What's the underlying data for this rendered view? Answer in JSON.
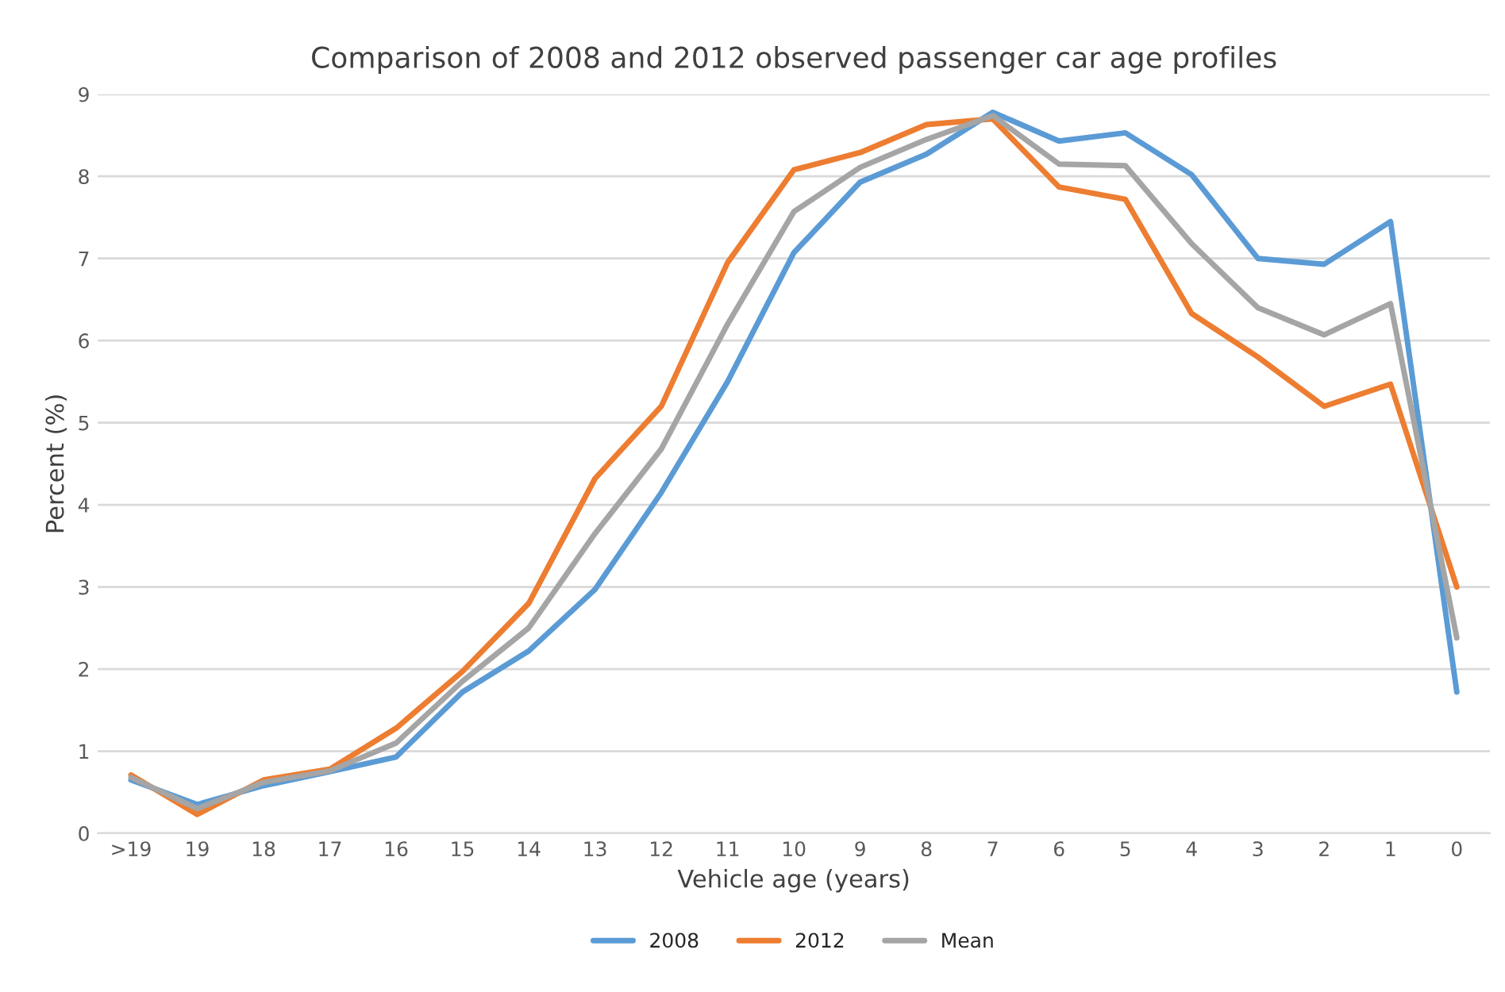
{
  "chart_data": {
    "type": "line",
    "title": "Comparison of 2008 and 2012 observed passenger car age profiles",
    "xlabel": "Vehicle age (years)",
    "ylabel": "Percent (%)",
    "categories": [
      ">19",
      "19",
      "18",
      "17",
      "16",
      "15",
      "14",
      "13",
      "12",
      "11",
      "10",
      "9",
      "8",
      "7",
      "6",
      "5",
      "4",
      "3",
      "2",
      "1",
      "0"
    ],
    "series": [
      {
        "name": "2008",
        "color": "#5b9bd5",
        "values": [
          0.65,
          0.35,
          0.58,
          0.75,
          0.93,
          1.72,
          2.22,
          2.97,
          4.15,
          5.5,
          7.07,
          7.93,
          8.27,
          8.78,
          8.43,
          8.53,
          8.02,
          7.0,
          6.93,
          7.45,
          1.72
        ]
      },
      {
        "name": "2012",
        "color": "#ed7d31",
        "values": [
          0.71,
          0.23,
          0.65,
          0.78,
          1.28,
          1.97,
          2.8,
          4.32,
          5.2,
          6.95,
          8.08,
          8.29,
          8.63,
          8.7,
          7.87,
          7.72,
          6.33,
          5.8,
          5.2,
          5.47,
          3.0
        ]
      },
      {
        "name": "Mean",
        "color": "#a5a5a5",
        "values": [
          0.68,
          0.3,
          0.62,
          0.76,
          1.1,
          1.85,
          2.5,
          3.65,
          4.68,
          6.2,
          7.57,
          8.11,
          8.45,
          8.74,
          8.15,
          8.13,
          7.18,
          6.4,
          6.07,
          6.45,
          2.38
        ]
      }
    ],
    "ylim": [
      0,
      9
    ],
    "yticks": [
      0,
      1,
      2,
      3,
      4,
      5,
      6,
      7,
      8,
      9
    ],
    "grid": "y",
    "legend": "bottom"
  }
}
